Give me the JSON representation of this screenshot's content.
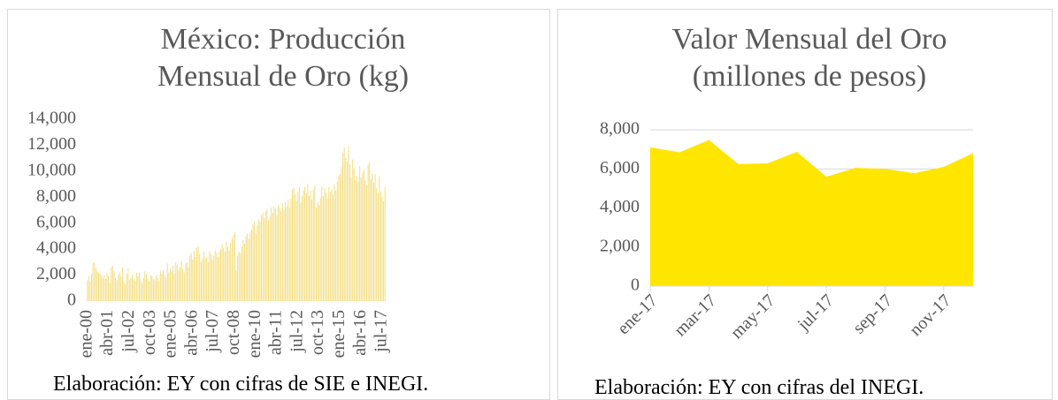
{
  "chart_data": [
    {
      "type": "bar",
      "title": "México: Producción Mensual de Oro (kg)",
      "source": "Elaboración: EY con cifras de SIE e INEGI.",
      "color": "#f3dd7a",
      "categories": [
        "ene-00",
        null,
        null,
        null,
        null,
        null,
        null,
        null,
        null,
        null,
        null,
        null,
        null,
        null,
        null,
        "abr-01",
        null,
        null,
        null,
        null,
        null,
        null,
        null,
        null,
        null,
        null,
        null,
        null,
        null,
        null,
        "jul-02",
        null,
        null,
        null,
        null,
        null,
        null,
        null,
        null,
        null,
        null,
        null,
        null,
        null,
        null,
        "oct-03",
        null,
        null,
        null,
        null,
        null,
        null,
        null,
        null,
        null,
        null,
        null,
        null,
        null,
        null,
        "ene-05",
        null,
        null,
        null,
        null,
        null,
        null,
        null,
        null,
        null,
        null,
        null,
        null,
        null,
        null,
        "abr-06",
        null,
        null,
        null,
        null,
        null,
        null,
        null,
        null,
        null,
        null,
        null,
        null,
        null,
        null,
        "jul-07",
        null,
        null,
        null,
        null,
        null,
        null,
        null,
        null,
        null,
        null,
        null,
        null,
        null,
        null,
        "oct-08",
        null,
        null,
        null,
        null,
        null,
        null,
        null,
        null,
        null,
        null,
        null,
        null,
        null,
        null,
        "ene-10",
        null,
        null,
        null,
        null,
        null,
        null,
        null,
        null,
        null,
        null,
        null,
        null,
        null,
        null,
        "abr-11",
        null,
        null,
        null,
        null,
        null,
        null,
        null,
        null,
        null,
        null,
        null,
        null,
        null,
        null,
        "jul-12",
        null,
        null,
        null,
        null,
        null,
        null,
        null,
        null,
        null,
        null,
        null,
        null,
        null,
        null,
        "oct-13",
        null,
        null,
        null,
        null,
        null,
        null,
        null,
        null,
        null,
        null,
        null,
        null,
        null,
        null,
        "ene-15",
        null,
        null,
        null,
        null,
        null,
        null,
        null,
        null,
        null,
        null,
        null,
        null,
        null,
        null,
        "abr-16",
        null,
        null,
        null,
        null,
        null,
        null,
        null,
        null,
        null,
        null,
        null,
        null,
        null,
        null,
        "jul-17",
        null,
        null
      ],
      "values": [
        1600,
        1900,
        1500,
        2100,
        2900,
        3000,
        2600,
        2300,
        2200,
        2100,
        2000,
        1800,
        2000,
        1700,
        2200,
        1900,
        1400,
        2600,
        2700,
        2300,
        1800,
        1600,
        2000,
        2200,
        1900,
        2600,
        1500,
        1300,
        2100,
        2500,
        1600,
        1800,
        2000,
        1700,
        1500,
        2200,
        1900,
        2200,
        1600,
        1400,
        1800,
        2300,
        2100,
        1700,
        1500,
        2000,
        1900,
        1700,
        1600,
        2000,
        1800,
        1500,
        2300,
        2100,
        2400,
        2000,
        1800,
        2900,
        2200,
        2500,
        2300,
        2700,
        2100,
        3000,
        2800,
        2400,
        2600,
        3100,
        2500,
        2200,
        2900,
        3000,
        2600,
        3500,
        3700,
        3200,
        3900,
        3400,
        4100,
        4200,
        3600,
        3000,
        3300,
        3800,
        3300,
        3400,
        3000,
        3800,
        3600,
        3200,
        3500,
        3900,
        3700,
        3400,
        3800,
        4000,
        4400,
        4100,
        3800,
        4600,
        4200,
        3900,
        4500,
        4800,
        5100,
        5300,
        2400,
        3500,
        3800,
        3700,
        4200,
        4700,
        4400,
        5000,
        5200,
        4800,
        5300,
        5500,
        5900,
        6100,
        5200,
        5800,
        6300,
        6100,
        6600,
        6800,
        6400,
        6900,
        7100,
        6200,
        6500,
        7200,
        6800,
        7300,
        7100,
        6600,
        7400,
        7200,
        6900,
        7500,
        7000,
        7600,
        7300,
        7800,
        7200,
        7900,
        8600,
        8700,
        8200,
        7700,
        8400,
        8800,
        7600,
        8100,
        8500,
        8800,
        8300,
        9000,
        8100,
        8500,
        7800,
        8600,
        8900,
        7200,
        7600,
        7400,
        8000,
        8800,
        8100,
        8700,
        8300,
        7900,
        8800,
        8400,
        8600,
        8200,
        9000,
        8500,
        9200,
        9600,
        9800,
        10300,
        11400,
        11800,
        11000,
        10700,
        11900,
        10500,
        9500,
        10900,
        10200,
        9300,
        9600,
        9200,
        10400,
        9500,
        9900,
        10100,
        9300,
        8900,
        10500,
        10700,
        9400,
        9800,
        9100,
        9800,
        8700,
        8300,
        9600,
        8400,
        8000,
        7700,
        8800
      ],
      "ylim": [
        0,
        14000
      ],
      "yticks": [
        0,
        {
          "value": 2000,
          "label": "2,000"
        },
        {
          "value": 4000,
          "label": "4,000"
        },
        {
          "value": 6000,
          "label": "6,000"
        },
        {
          "value": 8000,
          "label": "8,000"
        },
        {
          "value": 10000,
          "label": "10,000"
        },
        {
          "value": 12000,
          "label": "12,000"
        },
        {
          "value": 14000,
          "label": "14,000"
        }
      ],
      "grid": false
    },
    {
      "type": "area",
      "title": "Valor Mensual del Oro (millones de pesos)",
      "source": "Elaboración: EY con cifras del INEGI.",
      "color": "#ffe600",
      "categories": [
        "ene-17",
        null,
        "mar-17",
        null,
        "may-17",
        null,
        "jul-17",
        null,
        "sep-17",
        null,
        "nov-17",
        null
      ],
      "values": [
        7100,
        6850,
        7480,
        6250,
        6280,
        6870,
        5600,
        6050,
        6000,
        5780,
        6100,
        6800
      ],
      "ylim": [
        0,
        8000
      ],
      "yticks": [
        0,
        {
          "value": 2000,
          "label": "2,000"
        },
        {
          "value": 4000,
          "label": "4,000"
        },
        {
          "value": 6000,
          "label": "6,000"
        },
        {
          "value": 8000,
          "label": "8,000"
        }
      ],
      "grid": true
    }
  ]
}
